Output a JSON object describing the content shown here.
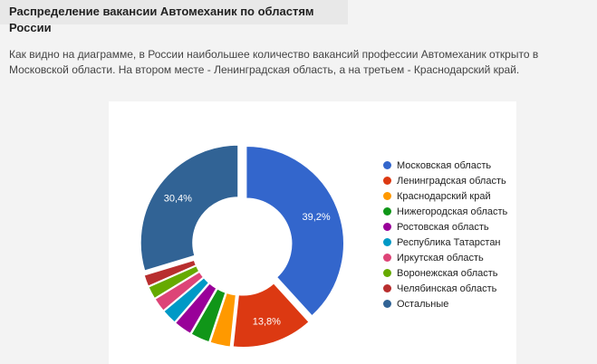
{
  "page": {
    "title": "Распределение вакансии Автомеханик по областям России",
    "description": "Как видно на диаграмме, в России наибольшее количество вакансий профессии Автомеханик открыто в Московской области. На втором месте - Ленинградская область, а на третьем - Краснодарский край."
  },
  "chart_data": {
    "type": "pie",
    "style": "donut",
    "legend_position": "right",
    "slices": [
      {
        "label": "Московская область",
        "value": 39.2,
        "data_label": "39,2%",
        "color": "#3366cc"
      },
      {
        "label": "Ленинградская область",
        "value": 13.8,
        "data_label": "13,8%",
        "color": "#dc3912"
      },
      {
        "label": "Краснодарский край",
        "value": 3.5,
        "data_label": "",
        "color": "#ff9900"
      },
      {
        "label": "Нижегородская область",
        "value": 3.3,
        "data_label": "",
        "color": "#109618"
      },
      {
        "label": "Ростовская область",
        "value": 3.1,
        "data_label": "",
        "color": "#990099"
      },
      {
        "label": "Республика Татарстан",
        "value": 2.6,
        "data_label": "",
        "color": "#0099c6"
      },
      {
        "label": "Иркутская область",
        "value": 2.4,
        "data_label": "",
        "color": "#dd4477"
      },
      {
        "label": "Воронежская область",
        "value": 2.2,
        "data_label": "",
        "color": "#66aa00"
      },
      {
        "label": "Челябинская область",
        "value": 2.0,
        "data_label": "",
        "color": "#b82e2e"
      },
      {
        "label": "Остальные",
        "value": 30.4,
        "data_label": "30,4%",
        "color": "#316395"
      }
    ]
  }
}
